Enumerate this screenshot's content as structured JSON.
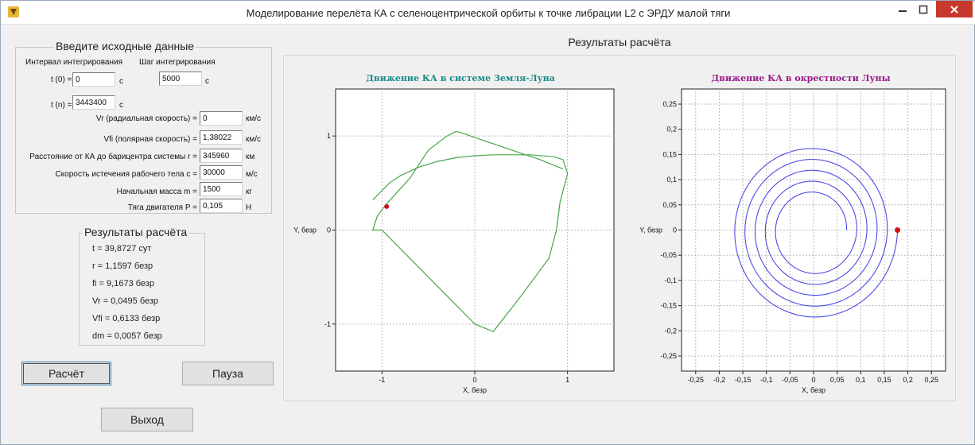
{
  "window": {
    "title": "Моделирование перелёта КА с селеноцентрической орбиты к точке либрации L2 с ЭРДУ малой тяги",
    "icon": "app-icon"
  },
  "input": {
    "group_title": "Введите исходные данные",
    "interval_label": "Интервал интегрирования",
    "step_label": "Шаг интегрирования",
    "t0_label": "t (0) =",
    "t0_value": "0",
    "t0_unit": "с",
    "step_value": "5000",
    "step_unit": "с",
    "tn_label": "t (n) =",
    "tn_value": "3443400",
    "tn_unit": "с",
    "vr_label": "Vr (радиальная скорость) =",
    "vr_value": "0",
    "vr_unit": "км/с",
    "vfi_label": "Vfi (полярная скорость) =",
    "vfi_value": "1,38022",
    "vfi_unit": "км/с",
    "r_label": "Расстояние от КА до барицентра системы r =",
    "r_value": "345960",
    "r_unit": "км",
    "c_label": "Скорость истечения рабочего тела c =",
    "c_value": "30000",
    "c_unit": "м/с",
    "m_label": "Начальная масса m =",
    "m_value": "1500",
    "m_unit": "кг",
    "p_label": "Тяга двигателя P =",
    "p_value": "0,105",
    "p_unit": "Н"
  },
  "results": {
    "group_title": "Результаты расчёта",
    "t": "t = 39,8727 сут",
    "r": "r = 1,1597 безр",
    "fi": "fi = 9,1673 безр",
    "vr": "Vr = 0,0495 безр",
    "vfi": "Vfi = 0,6133 безр",
    "dm": "dm = 0,0057 безр"
  },
  "buttons": {
    "calc": "Расчёт",
    "pause": "Пауза",
    "exit": "Выход"
  },
  "panel_title": "Результаты расчёта",
  "colors": {
    "earth_moon_title": "#1b8a8a",
    "moon_title": "#9b1c8a",
    "earth_moon_curve": "#49a54a",
    "moon_curve": "#3b3be6",
    "marker": "#d01010",
    "close_button": "#c7392c"
  },
  "chart_data": [
    {
      "type": "line",
      "title": "Движение КА в системе Земля-Луна",
      "xlabel": "X, безр",
      "ylabel": "Y, безр",
      "xlim": [
        -1.5,
        1.5
      ],
      "ylim": [
        -1.5,
        1.5
      ],
      "x_ticks": [
        "-1",
        "0",
        "1"
      ],
      "y_ticks": [
        "1",
        "0",
        "-1"
      ],
      "grid": true,
      "series": [
        {
          "x": [
            -1.1,
            -1.0,
            -0.92,
            -0.8,
            -0.6,
            -0.4,
            -0.2,
            0.0,
            0.2,
            0.4,
            0.6,
            0.85,
            0.95,
            1.0,
            0.92,
            0.88,
            0.8,
            0.5,
            0.2,
            0.0,
            -0.3,
            -0.6,
            -0.85,
            -1.0,
            -1.1,
            -1.05,
            -0.95,
            -0.7,
            -0.5,
            -0.3,
            -0.2,
            -0.1,
            0.1,
            0.4,
            0.7,
            0.95
          ],
          "y": [
            0.32,
            0.42,
            0.5,
            0.58,
            0.67,
            0.73,
            0.77,
            0.79,
            0.8,
            0.8,
            0.8,
            0.78,
            0.75,
            0.6,
            0.3,
            0.0,
            -0.3,
            -0.7,
            -1.08,
            -1.0,
            -0.7,
            -0.4,
            -0.15,
            0.0,
            0.0,
            0.15,
            0.28,
            0.55,
            0.85,
            1.0,
            1.05,
            1.02,
            0.95,
            0.85,
            0.75,
            0.65
          ]
        }
      ],
      "marker": {
        "x": -0.95,
        "y": 0.25
      }
    },
    {
      "type": "line",
      "title": "Движение КА в окрестности Луны",
      "xlabel": "X, безр",
      "ylabel": "Y, безр",
      "xlim": [
        -0.28,
        0.28
      ],
      "ylim": [
        -0.28,
        0.28
      ],
      "x_ticks": [
        "-0,25",
        "-0,2",
        "-0,15",
        "-0,1",
        "-0,05",
        "0",
        "0,05",
        "0,1",
        "0,15",
        "0,2",
        "0,25"
      ],
      "y_ticks": [
        "0,25",
        "0,2",
        "0,15",
        "0,1",
        "0,05",
        "0",
        "-0,05",
        "-0,1",
        "-0,15",
        "-0,2",
        "-0,25"
      ],
      "grid": true,
      "spiral": {
        "r_start": 0.07,
        "r_end": 0.178,
        "turns": 5
      },
      "marker": {
        "x": 0.178,
        "y": 0.0
      }
    }
  ]
}
